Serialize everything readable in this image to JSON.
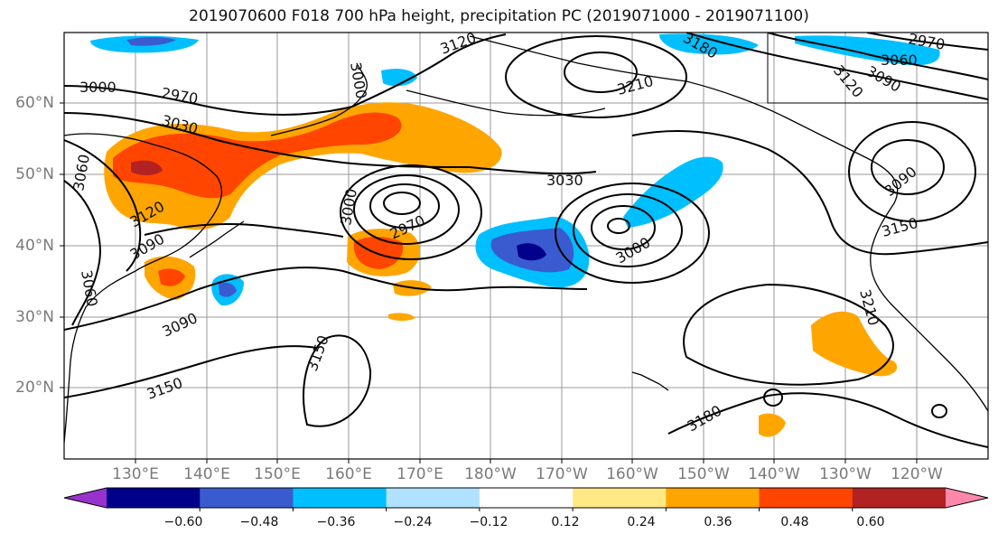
{
  "title": "2019070600 F018 700 hPa height, precipitation PC (2019071000 - 2019071100)",
  "lat_labels": [
    "60°N",
    "50°N",
    "40°N",
    "30°N",
    "20°N"
  ],
  "lon_labels": [
    "130°E",
    "140°E",
    "150°E",
    "160°E",
    "170°E",
    "180°W",
    "170°W",
    "160°W",
    "150°W",
    "140°W",
    "130°W",
    "120°W"
  ],
  "contour_labels": [
    "3000",
    "2970",
    "3030",
    "3060",
    "3120",
    "3090",
    "3060",
    "3090",
    "3150",
    "3150",
    "3120",
    "3000",
    "2970",
    "3000",
    "3030",
    "3210",
    "3180",
    "3000",
    "3060",
    "3120",
    "3090",
    "2970",
    "3090",
    "3150",
    "3210",
    "3180"
  ],
  "colorbar": {
    "ticks": [
      "−0.60",
      "−0.48",
      "−0.36",
      "−0.24",
      "−0.12",
      "0.12",
      "0.24",
      "0.36",
      "0.48",
      "0.60"
    ],
    "colors": [
      "#9932cc",
      "#00008b",
      "#3a5bcf",
      "#00bfff",
      "#b0e2ff",
      "#ffffff",
      "#ffe985",
      "#ffa500",
      "#ff4500",
      "#b22222",
      "#ff88aa"
    ]
  }
}
